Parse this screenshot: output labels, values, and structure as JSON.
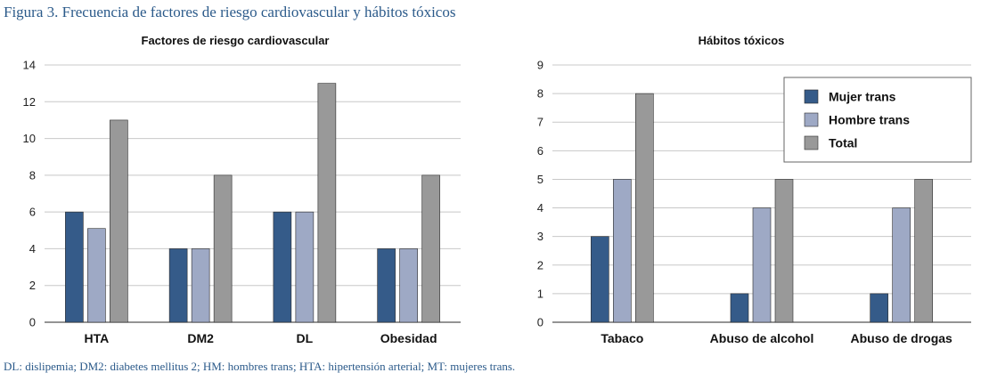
{
  "figure": {
    "label": "Figura 3.",
    "title": "Frecuencia de factores de riesgo cardiovascular y hábitos tóxicos",
    "footnote": "DL: dislipemia; DM2: diabetes mellitus 2; HM: hombres trans; HTA: hipertensión arterial; MT: mujeres trans."
  },
  "chart_data": [
    {
      "type": "bar",
      "title": "Factores de riesgo cardiovascular",
      "categories": [
        "HTA",
        "DM2",
        "DL",
        "Obesidad"
      ],
      "series": [
        {
          "name": "Mujer trans",
          "color": "#355b89",
          "values": [
            6,
            4,
            6,
            4
          ]
        },
        {
          "name": "Hombre trans",
          "color": "#9ea9c5",
          "values": [
            5.1,
            4,
            6,
            4
          ]
        },
        {
          "name": "Total",
          "color": "#999999",
          "values": [
            11,
            8,
            13,
            8
          ]
        }
      ],
      "ylim": [
        0,
        14
      ],
      "yticks": [
        0,
        2,
        4,
        6,
        8,
        10,
        12,
        14
      ],
      "grid": true,
      "legend": "none",
      "xlabel": "",
      "ylabel": ""
    },
    {
      "type": "bar",
      "title": "Hábitos tóxicos",
      "categories": [
        "Tabaco",
        "Abuso de alcohol",
        "Abuso de drogas"
      ],
      "series": [
        {
          "name": "Mujer trans",
          "color": "#355b89",
          "values": [
            3,
            1,
            1
          ]
        },
        {
          "name": "Hombre trans",
          "color": "#9ea9c5",
          "values": [
            5,
            4,
            4
          ]
        },
        {
          "name": "Total",
          "color": "#999999",
          "values": [
            8,
            5,
            5
          ]
        }
      ],
      "ylim": [
        0,
        9
      ],
      "yticks": [
        0,
        1,
        2,
        3,
        4,
        5,
        6,
        7,
        8,
        9
      ],
      "grid": true,
      "legend": "top-right",
      "xlabel": "",
      "ylabel": ""
    }
  ]
}
